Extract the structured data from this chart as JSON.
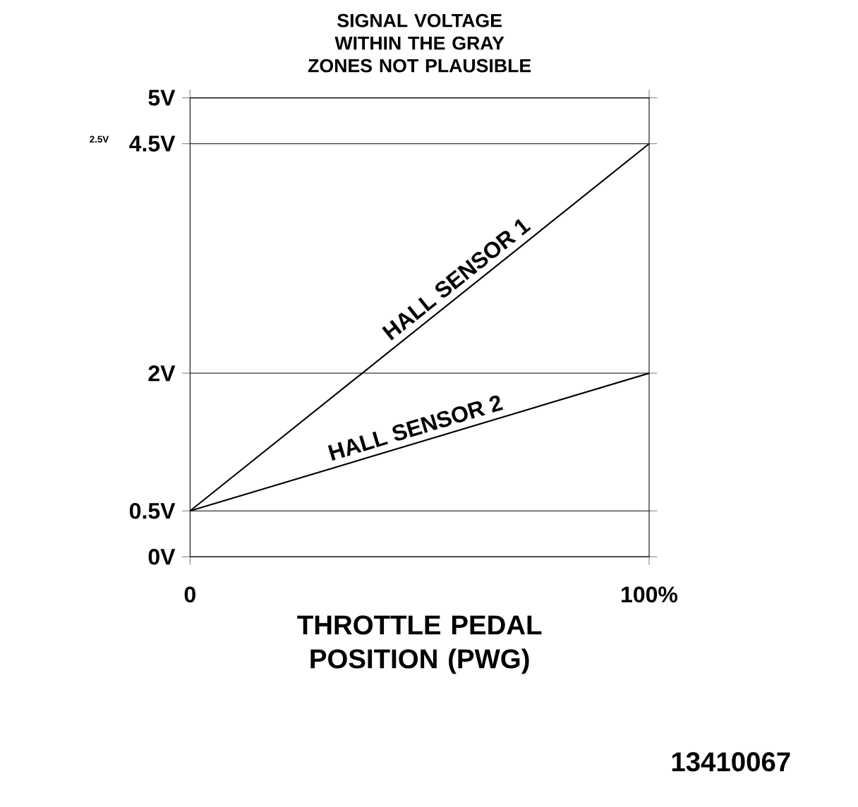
{
  "chart_data": {
    "type": "line",
    "title": "SIGNAL VOLTAGE WITHIN THE GRAY ZONES NOT PLAUSIBLE",
    "xlabel": "THROTTLE PEDAL POSITION (PWG)",
    "x": [
      0,
      100
    ],
    "series": [
      {
        "name": "HALL SENSOR 1",
        "color": "#000000",
        "values": [
          0.5,
          4.5
        ]
      },
      {
        "name": "HALL SENSOR 2",
        "color": "#000000",
        "values": [
          0.5,
          2
        ]
      }
    ],
    "xlim": [
      0,
      100
    ],
    "xticks": [
      0,
      {
        "value": 100,
        "label": "100%"
      }
    ],
    "ylim": [
      0,
      5
    ],
    "yticks": [
      {
        "value": 0,
        "label": "0V"
      },
      {
        "value": 0.5,
        "label": "0.5V"
      },
      {
        "value": 2,
        "label": "2V"
      },
      {
        "value": 4.5,
        "label": "4.5V"
      },
      {
        "value": 5,
        "label": "5V"
      }
    ],
    "grid": "y",
    "marker": "none",
    "line_style": "solid",
    "annotations": [
      "2.5V",
      "13410067"
    ]
  }
}
